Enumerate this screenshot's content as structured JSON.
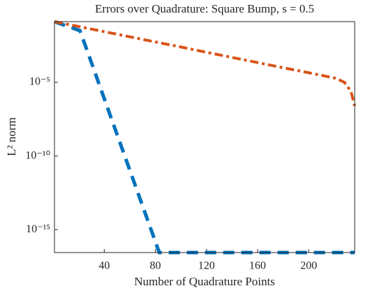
{
  "chart_data": {
    "type": "line",
    "title": "Errors over Quadrature: Square Bump, s = 0.5",
    "x_label": "Number of Quadrature Points",
    "y_label": "L² norm",
    "x": [
      1,
      21,
      83,
      100,
      120,
      140,
      160,
      180,
      200,
      221,
      228,
      233,
      236
    ],
    "series": [
      {
        "color": "#0072BD",
        "style": "dashed",
        "values": [
          0.132,
          0.032,
          2.8e-17,
          2.8e-17,
          2.8e-17,
          2.8e-17,
          2.8e-17,
          2.8e-17,
          2.8e-17,
          2.8e-17,
          2.8e-17,
          2.8e-17,
          2.8e-17
        ]
      },
      {
        "color": "#D95319",
        "style": "dashdot",
        "values": [
          0.132,
          0.059,
          0.0049,
          0.0025,
          0.0011,
          0.00049,
          0.00022,
          9.8e-05,
          4.5e-05,
          1.9e-05,
          1e-05,
          2.5e-06,
          2.5e-07
        ]
      }
    ],
    "xlim": [
      1,
      236
    ],
    "ylim": [
      2.8e-17,
      0.132
    ],
    "log_y": true,
    "xticks": [
      40,
      80,
      120,
      160,
      200
    ],
    "yticks": [
      {
        "value": 1e-15,
        "label": "10⁻¹⁵"
      },
      {
        "value": 1e-10,
        "label": "10⁻¹⁰"
      },
      {
        "value": 1e-05,
        "label": "10⁻⁵"
      }
    ]
  }
}
